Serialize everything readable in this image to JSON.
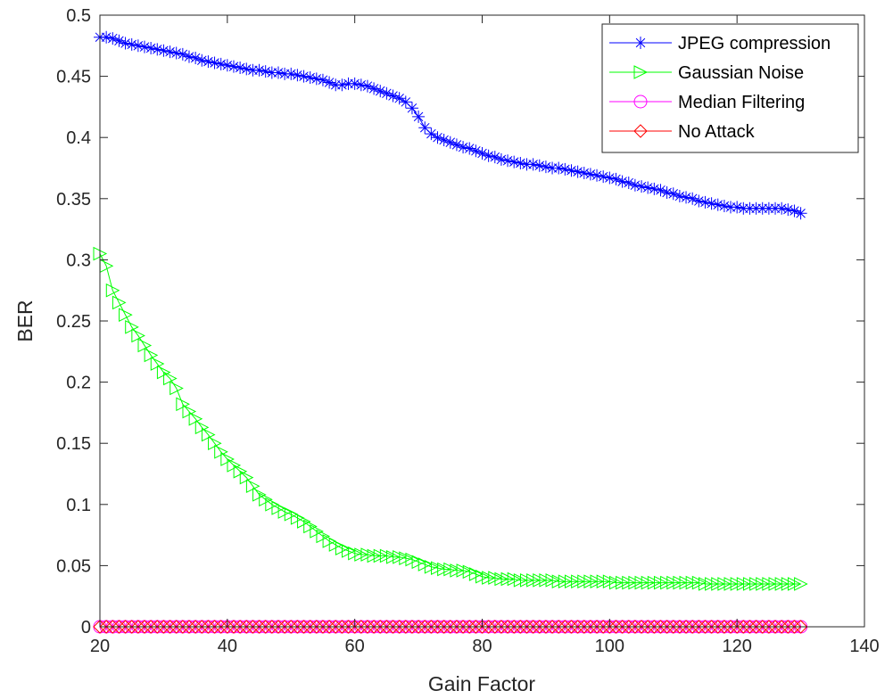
{
  "chart_data": {
    "type": "line",
    "title": "",
    "xlabel": "Gain Factor",
    "ylabel": "BER",
    "xlim": [
      20,
      140
    ],
    "ylim": [
      0,
      0.5
    ],
    "xticks": [
      20,
      40,
      60,
      80,
      100,
      120,
      140
    ],
    "yticks": [
      0,
      0.05,
      0.1,
      0.15,
      0.2,
      0.25,
      0.3,
      0.35,
      0.4,
      0.45,
      0.5
    ],
    "xtick_labels": [
      "20",
      "40",
      "60",
      "80",
      "100",
      "120",
      "140"
    ],
    "ytick_labels": [
      "0",
      "0.05",
      "0.1",
      "0.15",
      "0.2",
      "0.25",
      "0.3",
      "0.35",
      "0.4",
      "0.45",
      "0.5"
    ],
    "grid": false,
    "legend_position": "top-right",
    "x_start": 20,
    "x_step": 1,
    "series": [
      {
        "name": "JPEG compression",
        "color": "#0000ff",
        "marker": "asterisk",
        "values": [
          0.482,
          0.482,
          0.481,
          0.479,
          0.477,
          0.476,
          0.475,
          0.474,
          0.473,
          0.472,
          0.471,
          0.47,
          0.469,
          0.468,
          0.466,
          0.465,
          0.463,
          0.462,
          0.461,
          0.46,
          0.459,
          0.458,
          0.457,
          0.456,
          0.455,
          0.455,
          0.454,
          0.453,
          0.453,
          0.452,
          0.452,
          0.451,
          0.45,
          0.449,
          0.448,
          0.447,
          0.445,
          0.443,
          0.443,
          0.444,
          0.444,
          0.443,
          0.442,
          0.44,
          0.438,
          0.436,
          0.434,
          0.432,
          0.429,
          0.424,
          0.417,
          0.408,
          0.403,
          0.4,
          0.398,
          0.396,
          0.394,
          0.392,
          0.391,
          0.389,
          0.387,
          0.385,
          0.384,
          0.382,
          0.381,
          0.38,
          0.379,
          0.378,
          0.378,
          0.377,
          0.376,
          0.375,
          0.375,
          0.374,
          0.373,
          0.372,
          0.371,
          0.37,
          0.369,
          0.368,
          0.367,
          0.366,
          0.364,
          0.363,
          0.361,
          0.36,
          0.359,
          0.358,
          0.357,
          0.355,
          0.354,
          0.352,
          0.351,
          0.35,
          0.348,
          0.347,
          0.346,
          0.345,
          0.344,
          0.343,
          0.343,
          0.342,
          0.342,
          0.342,
          0.342,
          0.342,
          0.342,
          0.342,
          0.341,
          0.34,
          0.338
        ]
      },
      {
        "name": "Gaussian Noise",
        "color": "#00ff00",
        "marker": "triangle-right",
        "values": [
          0.305,
          0.295,
          0.275,
          0.265,
          0.255,
          0.245,
          0.238,
          0.23,
          0.222,
          0.215,
          0.208,
          0.203,
          0.195,
          0.182,
          0.176,
          0.17,
          0.163,
          0.157,
          0.15,
          0.143,
          0.137,
          0.132,
          0.127,
          0.122,
          0.115,
          0.108,
          0.104,
          0.1,
          0.097,
          0.094,
          0.092,
          0.089,
          0.086,
          0.082,
          0.078,
          0.074,
          0.07,
          0.067,
          0.064,
          0.062,
          0.06,
          0.059,
          0.059,
          0.058,
          0.058,
          0.058,
          0.057,
          0.057,
          0.056,
          0.055,
          0.053,
          0.051,
          0.049,
          0.048,
          0.047,
          0.047,
          0.046,
          0.046,
          0.045,
          0.043,
          0.041,
          0.04,
          0.04,
          0.039,
          0.039,
          0.039,
          0.038,
          0.038,
          0.038,
          0.038,
          0.038,
          0.038,
          0.037,
          0.037,
          0.037,
          0.037,
          0.037,
          0.037,
          0.037,
          0.037,
          0.037,
          0.036,
          0.036,
          0.036,
          0.036,
          0.036,
          0.036,
          0.036,
          0.036,
          0.036,
          0.036,
          0.036,
          0.036,
          0.036,
          0.036,
          0.035,
          0.035,
          0.035,
          0.035,
          0.035,
          0.035,
          0.035,
          0.035,
          0.035,
          0.035,
          0.035,
          0.035,
          0.035,
          0.035,
          0.035,
          0.035
        ]
      },
      {
        "name": "Median Filtering",
        "color": "#ff00ff",
        "marker": "circle",
        "values": [
          0,
          0,
          0,
          0,
          0,
          0,
          0,
          0,
          0,
          0,
          0,
          0,
          0,
          0,
          0,
          0,
          0,
          0,
          0,
          0,
          0,
          0,
          0,
          0,
          0,
          0,
          0,
          0,
          0,
          0,
          0,
          0,
          0,
          0,
          0,
          0,
          0,
          0,
          0,
          0,
          0,
          0,
          0,
          0,
          0,
          0,
          0,
          0,
          0,
          0,
          0,
          0,
          0,
          0,
          0,
          0,
          0,
          0,
          0,
          0,
          0,
          0,
          0,
          0,
          0,
          0,
          0,
          0,
          0,
          0,
          0,
          0,
          0,
          0,
          0,
          0,
          0,
          0,
          0,
          0,
          0,
          0,
          0,
          0,
          0,
          0,
          0,
          0,
          0,
          0,
          0,
          0,
          0,
          0,
          0,
          0,
          0,
          0,
          0,
          0,
          0,
          0,
          0,
          0,
          0,
          0,
          0,
          0,
          0,
          0,
          0
        ]
      },
      {
        "name": "No Attack",
        "color": "#ff0000",
        "marker": "diamond",
        "values": [
          0,
          0,
          0,
          0,
          0,
          0,
          0,
          0,
          0,
          0,
          0,
          0,
          0,
          0,
          0,
          0,
          0,
          0,
          0,
          0,
          0,
          0,
          0,
          0,
          0,
          0,
          0,
          0,
          0,
          0,
          0,
          0,
          0,
          0,
          0,
          0,
          0,
          0,
          0,
          0,
          0,
          0,
          0,
          0,
          0,
          0,
          0,
          0,
          0,
          0,
          0,
          0,
          0,
          0,
          0,
          0,
          0,
          0,
          0,
          0,
          0,
          0,
          0,
          0,
          0,
          0,
          0,
          0,
          0,
          0,
          0,
          0,
          0,
          0,
          0,
          0,
          0,
          0,
          0,
          0,
          0,
          0,
          0,
          0,
          0,
          0,
          0,
          0,
          0,
          0,
          0,
          0,
          0,
          0,
          0,
          0,
          0,
          0,
          0,
          0,
          0,
          0,
          0,
          0,
          0,
          0,
          0,
          0,
          0,
          0,
          0
        ]
      }
    ]
  }
}
